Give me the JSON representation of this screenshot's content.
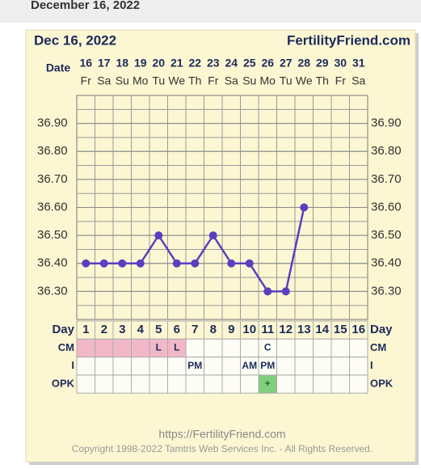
{
  "page_header": "December 16, 2022",
  "chart_data": {
    "type": "line",
    "title": "Dec 16, 2022",
    "site": "FertilityFriend.com",
    "date_label": "Date",
    "categories": [
      16,
      17,
      18,
      19,
      20,
      21,
      22,
      23,
      24,
      25,
      26,
      27,
      28,
      29,
      30,
      31
    ],
    "weekdays": [
      "Fr",
      "Sa",
      "Su",
      "Mo",
      "Tu",
      "We",
      "Th",
      "Fr",
      "Sa",
      "Su",
      "Mo",
      "Tu",
      "We",
      "Th",
      "Fr",
      "Sa"
    ],
    "series": [
      {
        "color": "#5a3fc0",
        "values": [
          36.4,
          36.4,
          36.4,
          36.4,
          36.5,
          36.4,
          36.4,
          36.5,
          36.4,
          36.4,
          36.3,
          36.3,
          36.6,
          null,
          null,
          null
        ]
      }
    ],
    "ylim": [
      36.2,
      37.0
    ],
    "yticks": [
      {
        "value": 36.3,
        "label": "36.30"
      },
      {
        "value": 36.4,
        "label": "36.40"
      },
      {
        "value": 36.5,
        "label": "36.50"
      },
      {
        "value": 36.6,
        "label": "36.60"
      },
      {
        "value": 36.7,
        "label": "36.70"
      },
      {
        "value": 36.8,
        "label": "36.80"
      },
      {
        "value": 36.9,
        "label": "36.90"
      }
    ],
    "grid": true,
    "table": {
      "day_label": "Day",
      "days": [
        1,
        2,
        3,
        4,
        5,
        6,
        7,
        8,
        9,
        10,
        11,
        12,
        13,
        14,
        15,
        16
      ],
      "cm_label": "CM",
      "cm": [
        null,
        null,
        null,
        null,
        "L",
        "L",
        null,
        null,
        null,
        null,
        "C",
        null,
        null,
        null,
        null,
        null
      ],
      "period": [
        true,
        true,
        true,
        true,
        true,
        true,
        false,
        false,
        false,
        false,
        false,
        false,
        false,
        false,
        false,
        false
      ],
      "period_color": "#f2b8c8",
      "i_label": "I",
      "intercourse": [
        null,
        null,
        null,
        null,
        null,
        null,
        "PM",
        null,
        null,
        "AM",
        "PM",
        null,
        null,
        null,
        null,
        null
      ],
      "opk_label": "OPK",
      "opk": [
        null,
        null,
        null,
        null,
        null,
        null,
        null,
        null,
        null,
        null,
        "+",
        null,
        null,
        null,
        null,
        null
      ],
      "opk_color": "#7fcf7f"
    }
  },
  "footer": {
    "url": "https://FertilityFriend.com",
    "copyright": "Copyright 1998-2022 Tamtris Web Services Inc. - All Rights Reserved."
  }
}
